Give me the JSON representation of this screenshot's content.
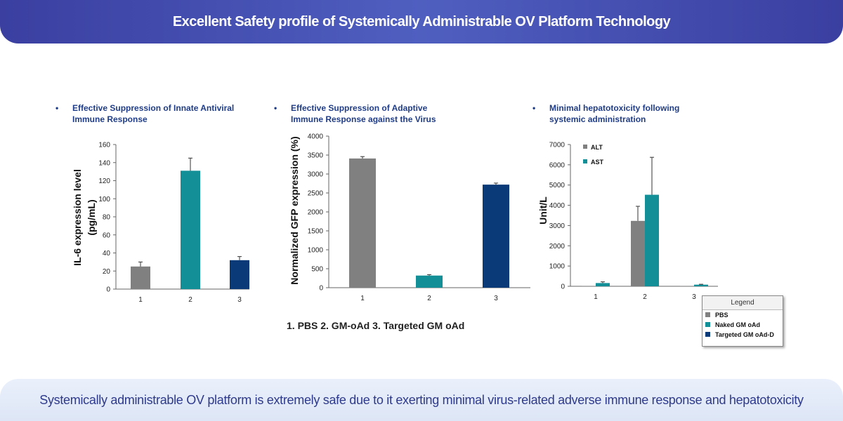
{
  "header": {
    "title": "Excellent Safety profile of Systemically Administrable OV Platform Technology"
  },
  "footer": {
    "text": "Systemically administrable OV platform is extremely safe due to it exerting minimal virus-related adverse immune response and hepatotoxicity"
  },
  "panels": [
    {
      "bullet": "•",
      "line1": "Effective Suppression of Innate Antiviral",
      "line2": "Immune Response"
    },
    {
      "bullet": "•",
      "line1": "Effective Suppression of Adaptive",
      "line2": "Immune Response against the Virus"
    },
    {
      "bullet": "•",
      "line1": "Minimal hepatotoxicity following",
      "line2": "systemic administration"
    }
  ],
  "caption": "1.  PBS  2. GM-oAd  3. Targeted GM oAd",
  "legend": {
    "title": "Legend",
    "items": [
      {
        "label": "PBS",
        "color": "#808080"
      },
      {
        "label": "Naked GM oAd",
        "color": "#138f98"
      },
      {
        "label": "Targeted GM oAd-D",
        "color": "#0a3b78"
      }
    ]
  },
  "chart_data": [
    {
      "type": "bar",
      "categories": [
        "1",
        "2",
        "3"
      ],
      "values": [
        25,
        131,
        32
      ],
      "errors": [
        5,
        14,
        4
      ],
      "colors": [
        "#808080",
        "#138f98",
        "#0a3b78"
      ],
      "ylabel": "IL-6 expression level\n(pg/mL)",
      "ylim": [
        0,
        160
      ],
      "yticks": [
        0,
        20,
        40,
        60,
        80,
        100,
        120,
        140,
        160
      ],
      "grid": false
    },
    {
      "type": "bar",
      "categories": [
        "1",
        "2",
        "3"
      ],
      "values": [
        3410,
        320,
        2720
      ],
      "errors": [
        50,
        25,
        40
      ],
      "colors": [
        "#808080",
        "#138f98",
        "#0a3b78"
      ],
      "ylabel": "Normalized GFP expression (%)",
      "ylim": [
        0,
        4000
      ],
      "yticks": [
        0,
        500,
        1000,
        1500,
        2000,
        2500,
        3000,
        3500,
        4000
      ],
      "grid": false
    },
    {
      "type": "bar",
      "categories": [
        "1",
        "2",
        "3"
      ],
      "series": [
        {
          "name": "ALT",
          "values": [
            10,
            3230,
            10
          ],
          "errors": [
            0,
            720,
            0
          ],
          "color": "#808080"
        },
        {
          "name": "AST",
          "values": [
            160,
            4520,
            80
          ],
          "errors": [
            60,
            1850,
            20
          ],
          "color": "#138f98"
        }
      ],
      "ylabel": "Unit/L",
      "ylim": [
        0,
        7000
      ],
      "yticks": [
        0,
        1000,
        2000,
        3000,
        4000,
        5000,
        6000,
        7000
      ],
      "legend_position": "top-left",
      "grid": false
    }
  ]
}
